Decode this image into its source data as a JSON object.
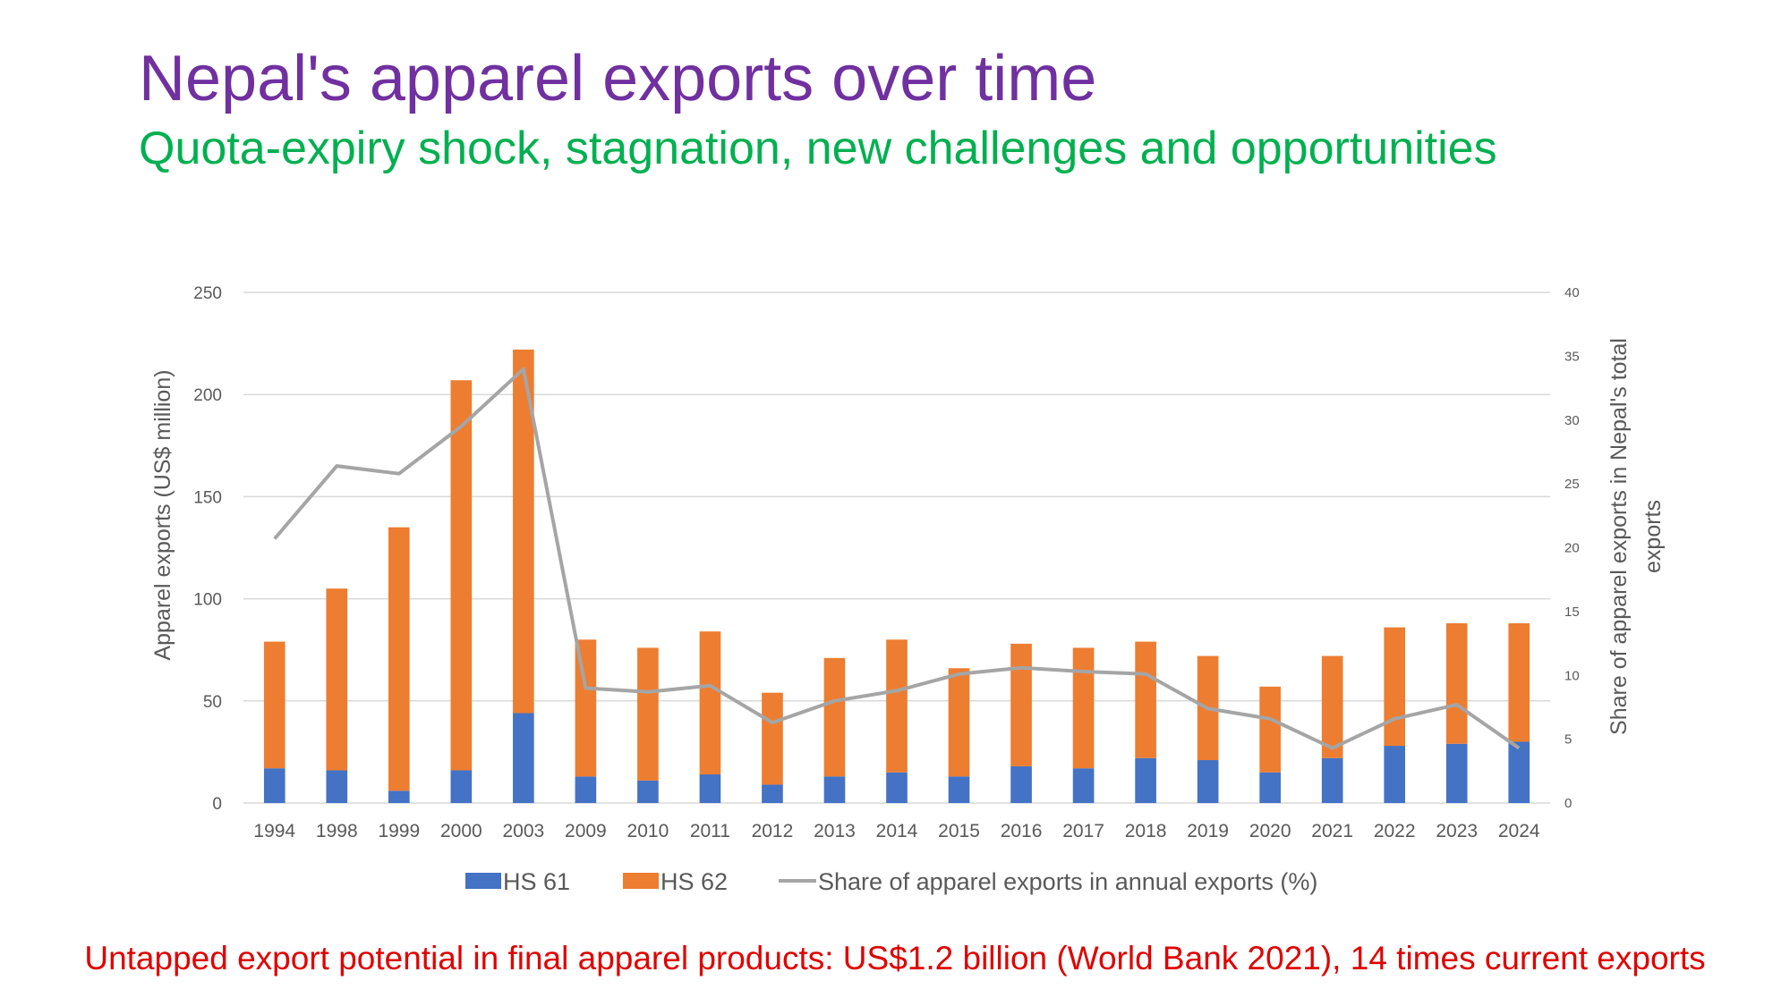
{
  "title": "Nepal's apparel exports over time",
  "subtitle": "Quota-expiry shock, stagnation, new challenges and opportunities",
  "footer": "Untapped export potential in final apparel products: US$1.2 billion (World Bank 2021), 14 times current exports",
  "colors": {
    "hs61": "#4472c4",
    "hs62": "#ed7d31",
    "share": "#a5a5a5",
    "grid": "#d9d9d9",
    "title": "#7030a0",
    "subtitle": "#00b050",
    "footer": "#e00000"
  },
  "chart_data": {
    "type": "bar",
    "stacked": true,
    "categories": [
      "1994",
      "1998",
      "1999",
      "2000",
      "2003",
      "2009",
      "2010",
      "2011",
      "2012",
      "2013",
      "2014",
      "2015",
      "2016",
      "2017",
      "2018",
      "2019",
      "2020",
      "2021",
      "2022",
      "2023",
      "2024"
    ],
    "ylabel": "Apparel exports (US$ million)",
    "y2label": "Share of apparel exports in Nepal's total exports",
    "ylim": [
      0,
      250
    ],
    "yticks": [
      0,
      50,
      100,
      150,
      200,
      250
    ],
    "y2lim": [
      0,
      40
    ],
    "y2ticks": [
      0,
      5,
      10,
      15,
      20,
      25,
      30,
      35,
      40
    ],
    "grid": true,
    "legend_position": "bottom",
    "series": [
      {
        "name": "HS 61",
        "type": "bar",
        "axis": "left",
        "values": [
          17,
          16,
          6,
          16,
          44,
          13,
          11,
          14,
          9,
          13,
          15,
          13,
          18,
          17,
          22,
          21,
          15,
          22,
          28,
          29,
          30
        ]
      },
      {
        "name": "HS 62",
        "type": "bar",
        "axis": "left",
        "values": [
          62,
          89,
          129,
          191,
          178,
          67,
          65,
          70,
          45,
          58,
          65,
          53,
          60,
          59,
          57,
          51,
          42,
          50,
          58,
          59,
          58
        ]
      },
      {
        "name": "Share of apparel exports in annual exports (%)",
        "type": "line",
        "axis": "right",
        "values": [
          20.7,
          26.4,
          25.8,
          29.5,
          34.0,
          9.0,
          8.7,
          9.2,
          6.3,
          8.0,
          8.8,
          10.1,
          10.6,
          10.3,
          10.1,
          7.4,
          6.6,
          4.3,
          6.6,
          7.7,
          4.3
        ]
      }
    ]
  }
}
